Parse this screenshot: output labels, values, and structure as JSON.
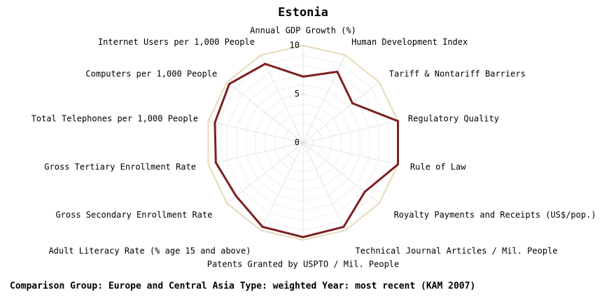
{
  "chart_data": {
    "type": "radar",
    "title": "Estonia",
    "categories": [
      "Annual GDP Growth (%)",
      "Human Development Index",
      "Tariff & Nontariff Barriers",
      "Regulatory Quality",
      "Rule of Law",
      "Royalty Payments and Receipts (US$/pop.)",
      "Technical Journal Articles / Mil. People",
      "Patents Granted by USPTO / Mil. People",
      "Adult Literacy Rate (% age 15 and above)",
      "Gross Secondary Enrollment Rate",
      "Gross Tertiary Enrollment Rate",
      "Total Telephones per 1,000 People",
      "Computers per 1,000 People",
      "Internet Users per 1,000 People"
    ],
    "series": [
      {
        "name": "Estonia",
        "color": "#7b2020",
        "values": [
          6.8,
          8.1,
          6.5,
          10,
          10,
          8.1,
          9.6,
          9.7,
          9.6,
          8.8,
          9.2,
          9.3,
          9.7,
          9.0
        ]
      }
    ],
    "ylim": [
      0,
      10
    ],
    "yticks": [
      0,
      5,
      10
    ],
    "grid": true,
    "footer": "Comparison Group: Europe and Central Asia  Type: weighted  Year: most recent (KAM 2007)"
  }
}
